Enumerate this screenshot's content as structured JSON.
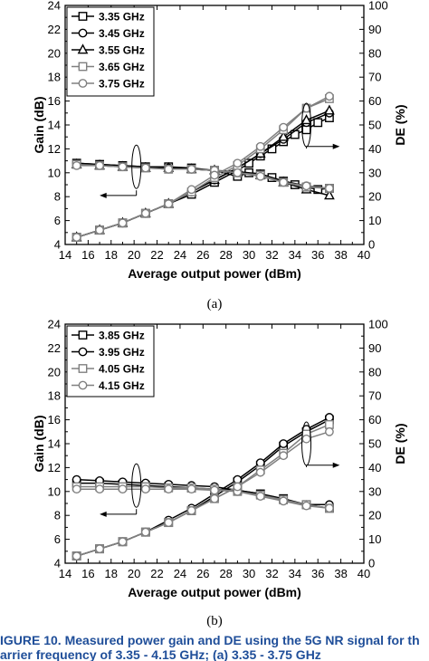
{
  "chart_data": [
    {
      "type": "line",
      "sublabel": "(a)",
      "xlabel": "Average output power (dBm)",
      "ylabel": "Gain (dB)",
      "y2label": "DE (%)",
      "xlim": [
        14,
        40
      ],
      "ylim": [
        4,
        24
      ],
      "y2lim": [
        0,
        100
      ],
      "xticks": [
        14,
        16,
        18,
        20,
        22,
        24,
        26,
        28,
        30,
        32,
        34,
        36,
        38,
        40
      ],
      "yticks": [
        4,
        6,
        8,
        10,
        12,
        14,
        16,
        18,
        20,
        22,
        24
      ],
      "y2ticks": [
        0,
        10,
        20,
        30,
        40,
        50,
        60,
        70,
        80,
        90,
        100
      ],
      "legend_position": "top-left",
      "grid": false,
      "series": [
        {
          "name": "3.35 GHz",
          "marker": "square",
          "color": "#000000",
          "x": [
            15,
            17,
            19,
            21,
            23,
            25,
            27,
            29,
            30,
            31,
            32,
            33,
            34,
            35,
            36,
            37
          ],
          "gain": [
            10.8,
            10.7,
            10.6,
            10.5,
            10.5,
            10.4,
            10.2,
            9.7,
            10.0,
            9.9,
            9.6,
            9.3,
            9.0,
            8.8,
            8.6,
            8.7
          ],
          "de": [
            3,
            6,
            9,
            13,
            17,
            21,
            26,
            31,
            34,
            37,
            40,
            43,
            46,
            48,
            51,
            53
          ]
        },
        {
          "name": "3.45 GHz",
          "marker": "circle",
          "color": "#000000",
          "x": [
            15,
            17,
            19,
            21,
            23,
            25,
            27,
            29,
            31,
            33,
            35,
            37
          ],
          "gain": [
            10.8,
            10.7,
            10.6,
            10.5,
            10.4,
            10.3,
            10.2,
            10.1,
            9.9,
            9.3,
            8.9,
            8.7
          ],
          "de": [
            3,
            6,
            9,
            13,
            17,
            22,
            27,
            32,
            38,
            44,
            51,
            55
          ]
        },
        {
          "name": "3.55 GHz",
          "marker": "triangle",
          "color": "#000000",
          "x": [
            15,
            17,
            19,
            21,
            23,
            25,
            27,
            29,
            31,
            33,
            35,
            37
          ],
          "gain": [
            10.7,
            10.6,
            10.5,
            10.4,
            10.4,
            10.3,
            10.2,
            10.0,
            9.8,
            9.2,
            8.6,
            8.1
          ],
          "de": [
            3,
            6,
            9,
            13,
            17,
            22,
            27,
            32,
            38,
            45,
            52,
            56
          ]
        },
        {
          "name": "3.65 GHz",
          "marker": "square",
          "color": "#808080",
          "x": [
            15,
            17,
            19,
            21,
            23,
            25,
            27,
            29,
            31,
            33,
            35,
            37
          ],
          "gain": [
            10.7,
            10.6,
            10.5,
            10.4,
            10.3,
            10.3,
            10.2,
            10.0,
            9.8,
            9.2,
            8.8,
            8.7
          ],
          "de": [
            3,
            6,
            9,
            13,
            17,
            22,
            28,
            33,
            40,
            48,
            57,
            61
          ]
        },
        {
          "name": "3.75 GHz",
          "marker": "circle",
          "color": "#808080",
          "x": [
            15,
            17,
            19,
            21,
            23,
            25,
            27,
            29,
            31,
            33,
            35,
            37
          ],
          "gain": [
            10.6,
            10.6,
            10.5,
            10.4,
            10.3,
            10.3,
            10.2,
            10.0,
            9.7,
            9.2,
            8.9,
            8.7
          ],
          "de": [
            3,
            6,
            9,
            13,
            17,
            23,
            29,
            34,
            41,
            49,
            57,
            62
          ]
        }
      ]
    },
    {
      "type": "line",
      "sublabel": "(b)",
      "xlabel": "Average output power (dBm)",
      "ylabel": "Gain (dB)",
      "y2label": "DE (%)",
      "xlim": [
        14,
        40
      ],
      "ylim": [
        4,
        24
      ],
      "y2lim": [
        0,
        100
      ],
      "xticks": [
        14,
        16,
        18,
        20,
        22,
        24,
        26,
        28,
        30,
        32,
        34,
        36,
        38,
        40
      ],
      "yticks": [
        4,
        6,
        8,
        10,
        12,
        14,
        16,
        18,
        20,
        22,
        24
      ],
      "y2ticks": [
        0,
        10,
        20,
        30,
        40,
        50,
        60,
        70,
        80,
        90,
        100
      ],
      "legend_position": "top-left",
      "grid": false,
      "series": [
        {
          "name": "3.85 GHz",
          "marker": "square",
          "color": "#000000",
          "x": [
            15,
            17,
            19,
            21,
            23,
            25,
            27,
            29,
            31,
            33,
            35,
            37
          ],
          "gain": [
            10.7,
            10.7,
            10.6,
            10.5,
            10.4,
            10.3,
            10.2,
            10.1,
            9.8,
            9.4,
            8.9,
            8.6
          ],
          "de": [
            3,
            6,
            9,
            13,
            17,
            22,
            28,
            34,
            41,
            49,
            55,
            60
          ]
        },
        {
          "name": "3.95 GHz",
          "marker": "circle",
          "color": "#000000",
          "x": [
            15,
            17,
            19,
            21,
            23,
            25,
            27,
            29,
            31,
            33,
            35,
            37
          ],
          "gain": [
            11.0,
            10.9,
            10.8,
            10.7,
            10.6,
            10.5,
            10.4,
            10.1,
            9.8,
            9.3,
            8.9,
            8.9
          ],
          "de": [
            3,
            6,
            9,
            13,
            18,
            23,
            29,
            35,
            42,
            50,
            56,
            61
          ]
        },
        {
          "name": "4.05 GHz",
          "marker": "square",
          "color": "#808080",
          "x": [
            15,
            17,
            19,
            21,
            23,
            25,
            27,
            29,
            31,
            33,
            35,
            37
          ],
          "gain": [
            10.4,
            10.4,
            10.4,
            10.4,
            10.3,
            10.3,
            10.2,
            10.0,
            9.7,
            9.3,
            8.9,
            8.6
          ],
          "de": [
            3,
            6,
            9,
            13,
            17,
            22,
            27,
            32,
            39,
            46,
            54,
            58
          ]
        },
        {
          "name": "4.15 GHz",
          "marker": "circle",
          "color": "#808080",
          "x": [
            15,
            17,
            19,
            21,
            23,
            25,
            27,
            29,
            31,
            33,
            35,
            37
          ],
          "gain": [
            10.2,
            10.2,
            10.2,
            10.2,
            10.2,
            10.2,
            10.1,
            10.0,
            9.6,
            9.2,
            8.8,
            8.6
          ],
          "de": [
            3,
            6,
            9,
            13,
            17,
            22,
            27,
            32,
            38,
            45,
            52,
            55
          ]
        }
      ]
    }
  ],
  "caption": {
    "line1": "IGURE 10.  Measured power gain and DE using the 5G NR signal for th",
    "line2": "arrier frequency of 3.35 - 4.15 GHz; (a) 3.35 - 3.75 GHz"
  }
}
